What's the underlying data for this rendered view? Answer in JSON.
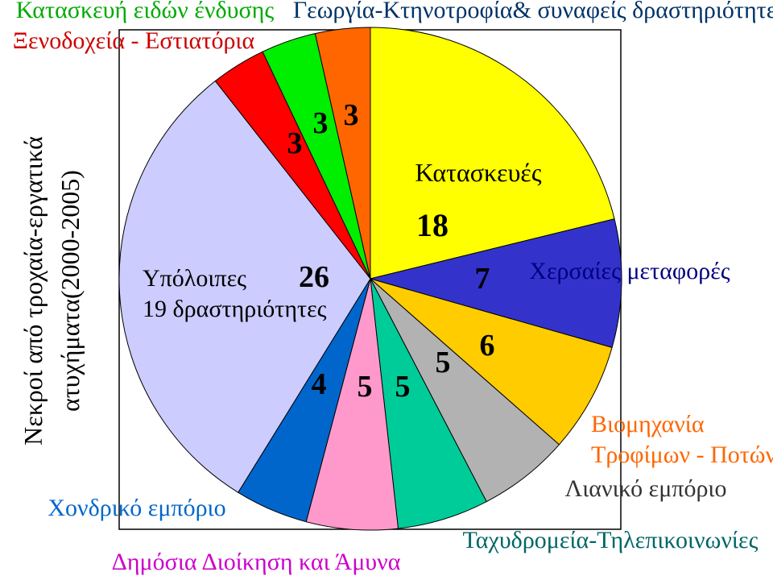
{
  "chart_data": {
    "type": "pie",
    "title": "Νεκροί από τροχαία-εργατικά ατυχήματα(2000-2005)",
    "title_lines": [
      "Νεκροί από τροχαία-εργατικά",
      "ατυχήματα(2000-2005)"
    ],
    "slices": [
      {
        "id": "construction",
        "value": 18,
        "value_label": "18",
        "color": "#ffff00",
        "label_lines": [
          "Κατασκευές"
        ],
        "label_color": "#000000"
      },
      {
        "id": "land-transport",
        "value": 7,
        "value_label": "7",
        "color": "#3333cc",
        "label_lines": [
          "Χερσαίες μεταφορές"
        ],
        "label_color": "#000080"
      },
      {
        "id": "food-industry",
        "value": 6,
        "value_label": "6",
        "color": "#ffcc00",
        "label_lines": [
          "Βιομηχανία",
          "Τροφίμων - Ποτών"
        ],
        "label_color": "#ff6600"
      },
      {
        "id": "retail",
        "value": 5,
        "value_label": "5",
        "color": "#b2b2b2",
        "label_lines": [
          "Λιανικό εμπόριο"
        ],
        "label_color": "#333333"
      },
      {
        "id": "post-telecom",
        "value": 5,
        "value_label": "5",
        "color": "#00cc99",
        "label_lines": [
          "Ταχυδρομεία-Τηλεπικοινωνίες"
        ],
        "label_color": "#006666"
      },
      {
        "id": "public-admin",
        "value": 5,
        "value_label": "5",
        "color": "#ff99cc",
        "label_lines": [
          "Δημόσια Διοίκηση και Άμυνα"
        ],
        "label_color": "#cc00cc"
      },
      {
        "id": "wholesale",
        "value": 4,
        "value_label": "4",
        "color": "#0066cc",
        "label_lines": [
          "Χονδρικό εμπόριο"
        ],
        "label_color": "#0066cc"
      },
      {
        "id": "other",
        "value": 26,
        "value_label": "26",
        "color": "#ccccff",
        "label_lines": [
          "Υπόλοιπες",
          "19 δραστηριότητες"
        ],
        "label_color": "#000000"
      },
      {
        "id": "hotels",
        "value": 3,
        "value_label": "3",
        "color": "#ff0000",
        "label_lines": [
          "Ξενοδοχεία - Εστιατόρια"
        ],
        "label_color": "#cc0000"
      },
      {
        "id": "clothing",
        "value": 3,
        "value_label": "3",
        "color": "#00ee00",
        "label_lines": [
          "Κατασκευή ειδών ένδυσης"
        ],
        "label_color": "#00aa00"
      },
      {
        "id": "agriculture",
        "value": 3,
        "value_label": "3",
        "color": "#ff6600",
        "label_lines": [
          "Γεωργία-Κτηνοτροφία& συναφείς δραστηριότητες"
        ],
        "label_color": "#003366"
      }
    ],
    "legend": "none",
    "grid": false
  }
}
